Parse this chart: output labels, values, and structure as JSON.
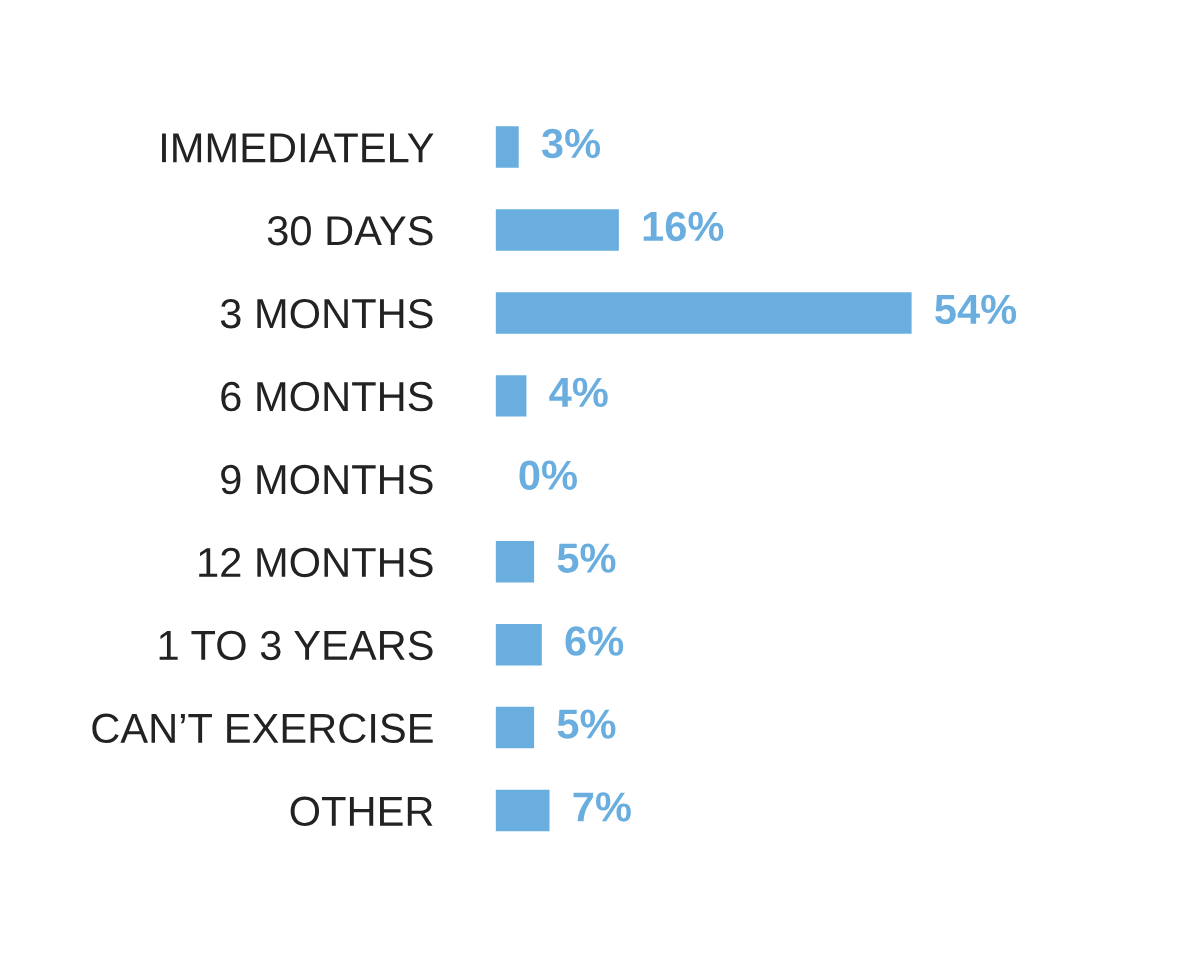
{
  "chart_data": {
    "type": "bar",
    "orientation": "horizontal",
    "categories": [
      "IMMEDIATELY",
      "30 DAYS",
      "3 MONTHS",
      "6 MONTHS",
      "9 MONTHS",
      "12 MONTHS",
      "1 TO 3 YEARS",
      "CAN’T EXERCISE",
      "OTHER"
    ],
    "values": [
      3,
      16,
      54,
      4,
      0,
      5,
      6,
      5,
      7
    ],
    "value_labels": [
      "3%",
      "16%",
      "54%",
      "4%",
      "0%",
      "5%",
      "6%",
      "5%",
      "7%"
    ],
    "color": "#6aaee0"
  }
}
